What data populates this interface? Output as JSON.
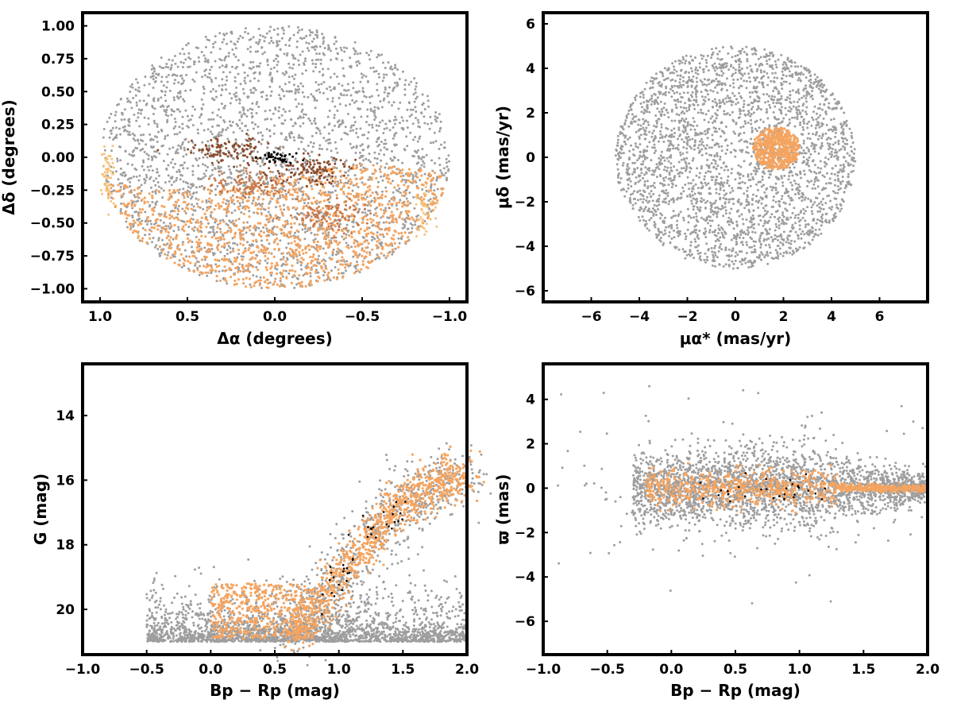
{
  "colors": {
    "field": "#9e9e9e",
    "members": "#f4a460",
    "cluster_dark": "#8b4a2b",
    "cluster_mid": "#c8794a",
    "cluster_light": "#f5c27a",
    "core": "#000000"
  },
  "chart_data": [
    {
      "type": "scatter",
      "id": "sky",
      "xlabel": "Δα (degrees)",
      "ylabel": "Δδ (degrees)",
      "xlim": [
        1.1,
        -1.1
      ],
      "ylim": [
        -1.1,
        1.1
      ],
      "xticks": [
        "1.0",
        "0.5",
        "0.0",
        "−0.5",
        "−1.0"
      ],
      "yticks": [
        "1.00",
        "0.75",
        "0.50",
        "0.25",
        "0.00",
        "−0.25",
        "−0.50",
        "−0.75",
        "−1.00"
      ],
      "field_region": {
        "shape": "circle",
        "center": [
          0,
          0
        ],
        "radius": 1.0
      },
      "member_region": {
        "description": "southern half of field",
        "dec_max": -0.15
      },
      "groups": [
        {
          "color": "cluster_dark",
          "center": [
            0.25,
            0.05
          ]
        },
        {
          "color": "cluster_dark",
          "center": [
            -0.2,
            -0.1
          ]
        },
        {
          "color": "cluster_mid",
          "center": [
            0.15,
            -0.2
          ]
        },
        {
          "color": "cluster_mid",
          "center": [
            -0.3,
            -0.45
          ]
        },
        {
          "color": "core",
          "center": [
            0.0,
            0.0
          ]
        }
      ]
    },
    {
      "type": "scatter",
      "id": "proper-motion",
      "xlabel": "μα* (mas/yr)",
      "ylabel": "μδ (mas/yr)",
      "xlim": [
        -8,
        8
      ],
      "ylim": [
        -6.5,
        6.5
      ],
      "xticks": [
        "−6",
        "−4",
        "−2",
        "0",
        "2",
        "4",
        "6"
      ],
      "yticks": [
        "6",
        "4",
        "2",
        "0",
        "−2",
        "−4",
        "−6"
      ],
      "field_region": {
        "shape": "circle",
        "center": [
          0,
          0
        ],
        "radius": 5.0
      },
      "member_region": {
        "shape": "circle",
        "center": [
          1.7,
          0.4
        ],
        "radius": 1.0
      }
    },
    {
      "type": "scatter",
      "id": "cmd",
      "xlabel": "Bp − Rp (mag)",
      "ylabel": "G (mag)",
      "xlim": [
        -1.0,
        2.0
      ],
      "ylim": [
        21.4,
        12.4
      ],
      "xticks": [
        "−1.0",
        "−0.5",
        "0.0",
        "0.5",
        "1.0",
        "1.5",
        "2.0"
      ],
      "yticks": [
        "20",
        "18",
        "16",
        "14"
      ],
      "sequence": [
        [
          0.6,
          20.9
        ],
        [
          0.9,
          19.6
        ],
        [
          1.1,
          18.6
        ],
        [
          1.3,
          17.5
        ],
        [
          1.5,
          16.7
        ],
        [
          1.75,
          16.1
        ],
        [
          2.0,
          15.8
        ]
      ],
      "faint_limit": 21.0
    },
    {
      "type": "scatter",
      "id": "parallax",
      "xlabel": "Bp − Rp (mag)",
      "ylabel": "ϖ (mas)",
      "xlim": [
        -1.0,
        2.0
      ],
      "ylim": [
        -7.5,
        5.6
      ],
      "xticks": [
        "−1.0",
        "−0.5",
        "0.0",
        "0.5",
        "1.0",
        "1.5",
        "2.0"
      ],
      "yticks": [
        "4",
        "2",
        "0",
        "−2",
        "−4",
        "−6"
      ],
      "member_center": 0.0
    }
  ]
}
